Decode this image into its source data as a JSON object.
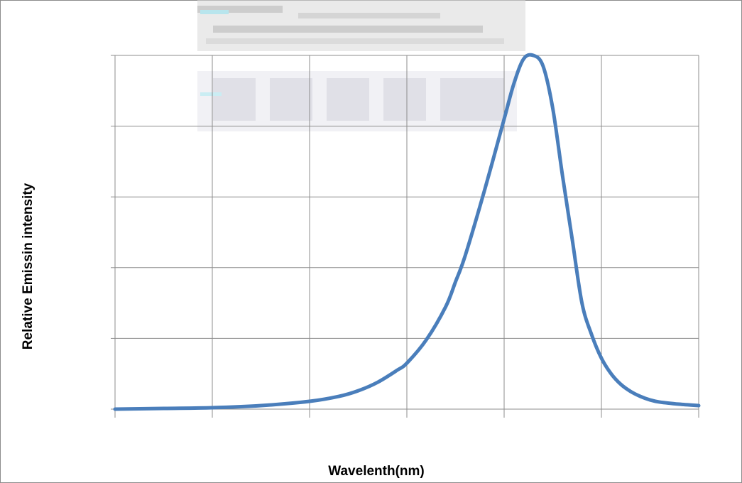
{
  "chart_data": {
    "type": "line",
    "title": "",
    "xlabel": "Wavelenth(nm)",
    "ylabel": "Relative Emissin intensity",
    "x_grid_divisions": 6,
    "y_grid_divisions": 5,
    "xlim": [
      0,
      6
    ],
    "ylim": [
      0,
      5
    ],
    "grid": true,
    "legend": "none",
    "tick_labels_visible": false,
    "line_color": "#4a7ebb",
    "grid_color": "#8c8c8c",
    "series": [
      {
        "x": [
          0,
          0.5,
          1.0,
          1.5,
          2.0,
          2.3,
          2.5,
          2.7,
          2.9,
          3.0,
          3.2,
          3.4,
          3.5,
          3.6,
          3.8,
          4.0,
          4.1,
          4.2,
          4.3,
          4.4,
          4.5,
          4.6,
          4.7,
          4.8,
          4.9,
          5.0,
          5.1,
          5.2,
          5.3,
          5.4,
          5.5,
          5.6,
          5.8,
          6.0
        ],
        "y": [
          0.0,
          0.01,
          0.02,
          0.05,
          0.11,
          0.18,
          0.26,
          0.38,
          0.55,
          0.65,
          0.98,
          1.45,
          1.8,
          2.17,
          3.1,
          4.1,
          4.6,
          4.95,
          5.0,
          4.85,
          4.25,
          3.3,
          2.4,
          1.5,
          1.05,
          0.72,
          0.5,
          0.35,
          0.25,
          0.18,
          0.13,
          0.1,
          0.07,
          0.05
        ]
      }
    ]
  }
}
